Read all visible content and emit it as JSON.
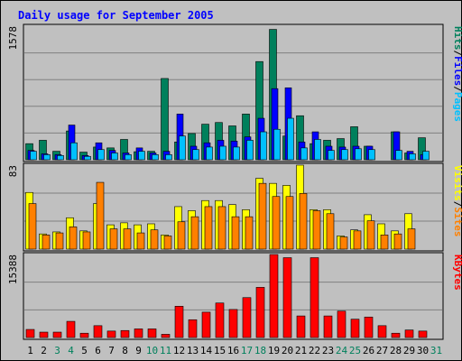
{
  "colors": {
    "frame_bg": "#c0c0c0",
    "title": "#0000ff",
    "hits": "#00805c",
    "files": "#0000ff",
    "pages": "#00c0ff",
    "visits": "#ffff00",
    "sites": "#ff8000",
    "kbytes": "#ff0000",
    "weekend_day": "#00805c",
    "weekday": "#000000",
    "grid": "#808080"
  },
  "chart_data": [
    {
      "type": "bar",
      "title": "Daily usage for September 2005",
      "ylabel_parts": [
        "Pages",
        "Files",
        "Hits"
      ],
      "ymax_label": "1578",
      "ylim": [
        0,
        1578
      ],
      "categories": [
        "1",
        "2",
        "3",
        "4",
        "5",
        "6",
        "7",
        "8",
        "9",
        "10",
        "11",
        "12",
        "13",
        "14",
        "15",
        "16",
        "17",
        "18",
        "19",
        "20",
        "21",
        "22",
        "23",
        "24",
        "25",
        "26",
        "27",
        "28",
        "29",
        "30",
        "31"
      ],
      "series": [
        {
          "name": "Hits",
          "values": [
            190,
            230,
            100,
            340,
            90,
            150,
            140,
            240,
            95,
            100,
            960,
            210,
            310,
            420,
            440,
            400,
            540,
            1160,
            1540,
            280,
            520,
            190,
            230,
            250,
            390,
            160,
            0,
            330,
            80,
            260,
            0
          ]
        },
        {
          "name": "Files",
          "values": [
            110,
            70,
            60,
            410,
            50,
            200,
            110,
            80,
            140,
            80,
            100,
            540,
            160,
            200,
            230,
            220,
            270,
            490,
            840,
            850,
            210,
            330,
            160,
            150,
            160,
            160,
            0,
            330,
            100,
            60,
            0
          ]
        },
        {
          "name": "Pages",
          "values": [
            100,
            60,
            50,
            200,
            40,
            120,
            80,
            60,
            100,
            60,
            60,
            280,
            120,
            150,
            160,
            150,
            230,
            330,
            360,
            490,
            140,
            240,
            110,
            120,
            130,
            120,
            0,
            110,
            70,
            100,
            0
          ]
        }
      ]
    },
    {
      "type": "bar",
      "ylabel_parts": [
        "Sites",
        "Visits"
      ],
      "ymax_label": "83",
      "ylim": [
        0,
        83
      ],
      "categories": [
        "1",
        "2",
        "3",
        "4",
        "5",
        "6",
        "7",
        "8",
        "9",
        "10",
        "11",
        "12",
        "13",
        "14",
        "15",
        "16",
        "17",
        "18",
        "19",
        "20",
        "21",
        "22",
        "23",
        "24",
        "25",
        "26",
        "27",
        "28",
        "29",
        "30",
        "31"
      ],
      "series": [
        {
          "name": "Visits",
          "values": [
            56,
            15,
            17,
            31,
            18,
            45,
            24,
            26,
            24,
            25,
            14,
            42,
            38,
            48,
            48,
            44,
            39,
            70,
            65,
            63,
            85,
            39,
            39,
            13,
            19,
            34,
            25,
            18,
            35,
            0,
            0
          ]
        },
        {
          "name": "Sites",
          "values": [
            45,
            14,
            16,
            22,
            17,
            66,
            20,
            20,
            16,
            19,
            13,
            27,
            32,
            42,
            42,
            32,
            32,
            65,
            52,
            52,
            55,
            38,
            35,
            12,
            18,
            28,
            14,
            15,
            20,
            0,
            0
          ]
        }
      ]
    },
    {
      "type": "bar",
      "ylabel_parts": [
        "KBytes"
      ],
      "ymax_label": "15388",
      "ylim": [
        0,
        15388
      ],
      "categories": [
        "1",
        "2",
        "3",
        "4",
        "5",
        "6",
        "7",
        "8",
        "9",
        "10",
        "11",
        "12",
        "13",
        "14",
        "15",
        "16",
        "17",
        "18",
        "19",
        "20",
        "21",
        "22",
        "23",
        "24",
        "25",
        "26",
        "27",
        "28",
        "29",
        "30",
        "31"
      ],
      "series": [
        {
          "name": "KBytes",
          "values": [
            1500,
            1000,
            1000,
            3000,
            800,
            2200,
            1200,
            1300,
            1600,
            1600,
            600,
            5800,
            3300,
            4700,
            6400,
            5200,
            7400,
            9300,
            16000,
            14800,
            4000,
            14800,
            4000,
            4900,
            3400,
            3800,
            2200,
            800,
            1400,
            1200,
            0
          ]
        }
      ]
    }
  ],
  "x_labels": {
    "days": [
      "1",
      "2",
      "3",
      "4",
      "5",
      "6",
      "7",
      "8",
      "9",
      "10",
      "11",
      "12",
      "13",
      "14",
      "15",
      "16",
      "17",
      "18",
      "19",
      "20",
      "21",
      "22",
      "23",
      "24",
      "25",
      "26",
      "27",
      "28",
      "29",
      "30",
      "31"
    ],
    "weekend_days": [
      "3",
      "4",
      "10",
      "11",
      "17",
      "18",
      "24",
      "25",
      "31"
    ]
  }
}
